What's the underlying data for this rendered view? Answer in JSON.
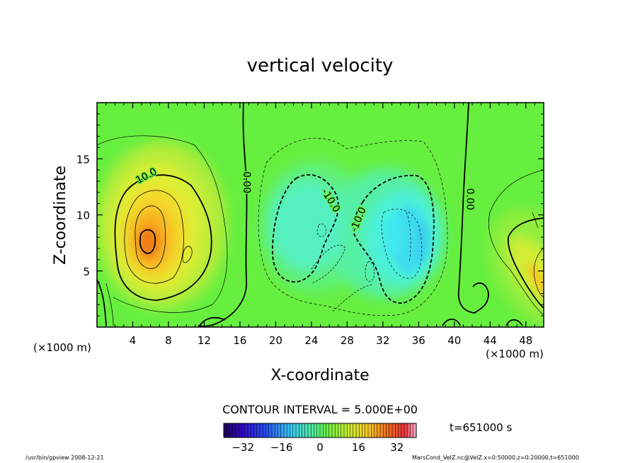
{
  "chart_data": {
    "type": "heatmap",
    "title": "vertical velocity",
    "xlabel": "X-coordinate",
    "ylabel": "Z-coordinate",
    "x_unit_left": "(×1000 m)",
    "x_unit_right": "(×1000 m)",
    "xlim": [
      0,
      50
    ],
    "ylim": [
      0,
      20
    ],
    "x_ticks": [
      4,
      8,
      12,
      16,
      20,
      24,
      28,
      32,
      36,
      40,
      44,
      48
    ],
    "y_ticks": [
      5,
      10,
      15
    ],
    "contour_labels": [
      {
        "text": "10.0",
        "x": 5.5,
        "z": 13.5,
        "angle": -28
      },
      {
        "text": "0.00",
        "x": 16.8,
        "z": 12.9,
        "angle": 90
      },
      {
        "text": "-10.0",
        "x": 26.2,
        "z": 11.3,
        "angle": 58
      },
      {
        "text": "-10.0",
        "x": 29.2,
        "z": 9.6,
        "angle": -68
      },
      {
        "text": "0.00",
        "x": 41.8,
        "z": 11.4,
        "angle": 90
      }
    ],
    "features": [
      {
        "sign": 1,
        "x": 6.0,
        "z": 7.8,
        "value": 24
      },
      {
        "sign": -1,
        "x": 34.5,
        "z": 8.5,
        "value": -12
      },
      {
        "sign": 1,
        "x": 49.0,
        "z": 4.0,
        "value": 16
      }
    ],
    "contour_interval_label": "CONTOUR INTERVAL = 5.000E+00",
    "colorbar": {
      "min": -40,
      "max": 40,
      "ticks": [
        "−32",
        "−16",
        "0",
        "16",
        "32"
      ],
      "tick_values": [
        -32,
        -16,
        0,
        16,
        32
      ]
    },
    "time_label": "t=651000  s"
  },
  "footer": {
    "left": "/usr/bin/gpview   2008-12-21",
    "right": "MarsCond_VelZ.nc@VelZ,x=0:50000,z=0:20000,t=651000"
  },
  "colors": {
    "background_field": "#66ef3f",
    "frame": "#000000"
  }
}
